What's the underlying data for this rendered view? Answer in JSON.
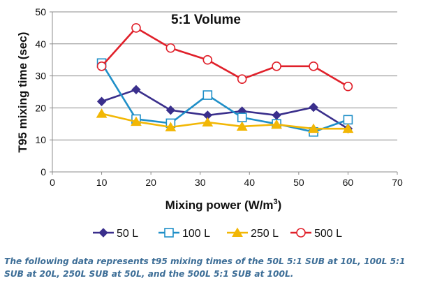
{
  "chart_data": {
    "type": "line",
    "title": "5:1 Volume",
    "xlabel": "Mixing power (W/m",
    "xlabel_superscript": "3",
    "xlabel_suffix": ")",
    "ylabel": "T95 mixing time (sec)",
    "xlim": [
      0,
      70
    ],
    "ylim": [
      0,
      50
    ],
    "x_ticks": [
      "0",
      "10",
      "20",
      "30",
      "40",
      "50",
      "60",
      "70"
    ],
    "y_ticks": [
      "0",
      "10",
      "20",
      "30",
      "40",
      "50"
    ],
    "grid": "horizontal",
    "legend_position": "bottom",
    "series": [
      {
        "name": "50 L",
        "color": "#3a2f8c",
        "marker": "diamond",
        "x": [
          10,
          17,
          24,
          31.5,
          38.5,
          45.5,
          53,
          60
        ],
        "y": [
          22,
          25.7,
          19.3,
          17.7,
          19,
          17.7,
          20.2,
          13.5
        ]
      },
      {
        "name": "100 L",
        "color": "#1f8fc8",
        "marker": "square",
        "x": [
          10,
          17,
          24,
          31.5,
          38.5,
          45.5,
          53,
          60
        ],
        "y": [
          34,
          16.5,
          15.2,
          24,
          17,
          15,
          12.5,
          16.3
        ]
      },
      {
        "name": "250 L",
        "color": "#f2b705",
        "marker": "triangle",
        "x": [
          10,
          17,
          24,
          31.5,
          38.5,
          45.5,
          53,
          60
        ],
        "y": [
          18.2,
          15.7,
          14,
          15.5,
          14.2,
          14.8,
          13.5,
          13.5
        ]
      },
      {
        "name": "500 L",
        "color": "#e0202a",
        "marker": "circle",
        "x": [
          10,
          17,
          24,
          31.5,
          38.5,
          45.5,
          53,
          60
        ],
        "y": [
          33,
          45,
          38.7,
          35,
          29,
          33,
          33,
          26.7
        ]
      }
    ]
  },
  "caption": "The following data represents t95 mixing times of the 50L 5:1 SUB at 10L, 100L 5:1 SUB at 20L, 250L SUB at 50L, and the 500L 5:1 SUB at 100L."
}
